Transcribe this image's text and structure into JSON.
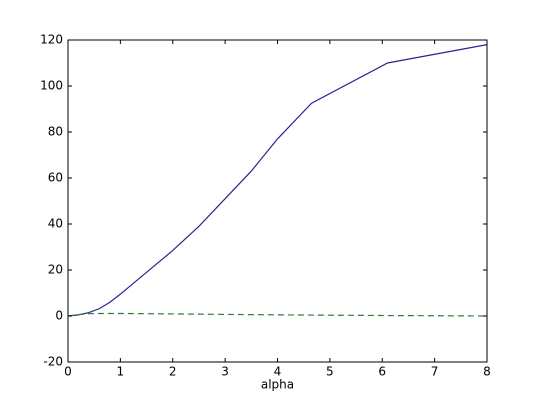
{
  "chart_data": {
    "type": "line",
    "x_label": "alpha",
    "x": [
      0,
      0.2,
      0.4,
      0.6,
      0.8,
      1,
      1.5,
      2,
      2.5,
      3,
      3.5,
      4,
      4.65,
      6.1,
      8
    ],
    "series": [
      {
        "color": "#262690",
        "dash": false,
        "values": [
          0,
          0.5,
          1.5,
          3.2,
          6,
          9.5,
          19,
          28.5,
          39,
          51,
          63,
          77,
          92.5,
          110,
          118
        ]
      },
      {
        "color": "#2e7d32",
        "dash": true,
        "values": [
          0,
          0.6,
          1,
          1.1,
          1.1,
          1.1,
          1,
          0.9,
          0.8,
          0.7,
          0.6,
          0.5,
          0.4,
          0.2,
          0
        ]
      }
    ],
    "xlim": [
      0,
      8
    ],
    "xticks": [
      0,
      1,
      2,
      3,
      4,
      5,
      6,
      7,
      8
    ],
    "ylim": [
      -20,
      120
    ],
    "yticks": [
      -20,
      0,
      20,
      40,
      60,
      80,
      100,
      120
    ],
    "grid": false
  }
}
